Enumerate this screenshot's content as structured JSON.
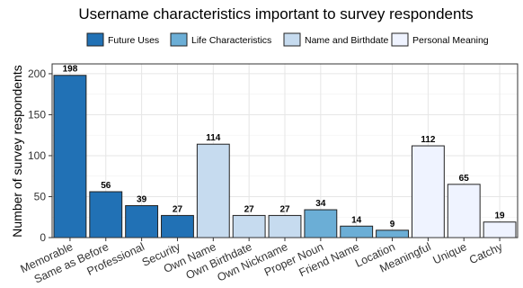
{
  "chart_data": {
    "type": "bar",
    "title": "Username characteristics important to survey respondents",
    "ylabel": "Number of survey respondents",
    "xlabel": "",
    "ylim": [
      0,
      212
    ],
    "yticks": [
      0,
      50,
      100,
      150,
      200
    ],
    "grid": true,
    "legend_position": "top",
    "legend": [
      {
        "name": "Future Uses",
        "color": "#2171b5"
      },
      {
        "name": "Life Characteristics",
        "color": "#6baed6"
      },
      {
        "name": "Name and Birthdate",
        "color": "#c6dbef"
      },
      {
        "name": "Personal Meaning",
        "color": "#eff3ff"
      }
    ],
    "categories": [
      "Memorable",
      "Same as Before",
      "Professional",
      "Security",
      "Own Name",
      "Own Birthdate",
      "Own Nickname",
      "Proper Noun",
      "Friend Name",
      "Location",
      "Meaningful",
      "Unique",
      "Catchy"
    ],
    "values": [
      198,
      56,
      39,
      27,
      114,
      27,
      27,
      34,
      14,
      9,
      112,
      65,
      19
    ],
    "groups": [
      "Future Uses",
      "Future Uses",
      "Future Uses",
      "Future Uses",
      "Name and Birthdate",
      "Name and Birthdate",
      "Name and Birthdate",
      "Life Characteristics",
      "Life Characteristics",
      "Life Characteristics",
      "Personal Meaning",
      "Personal Meaning",
      "Personal Meaning"
    ]
  }
}
